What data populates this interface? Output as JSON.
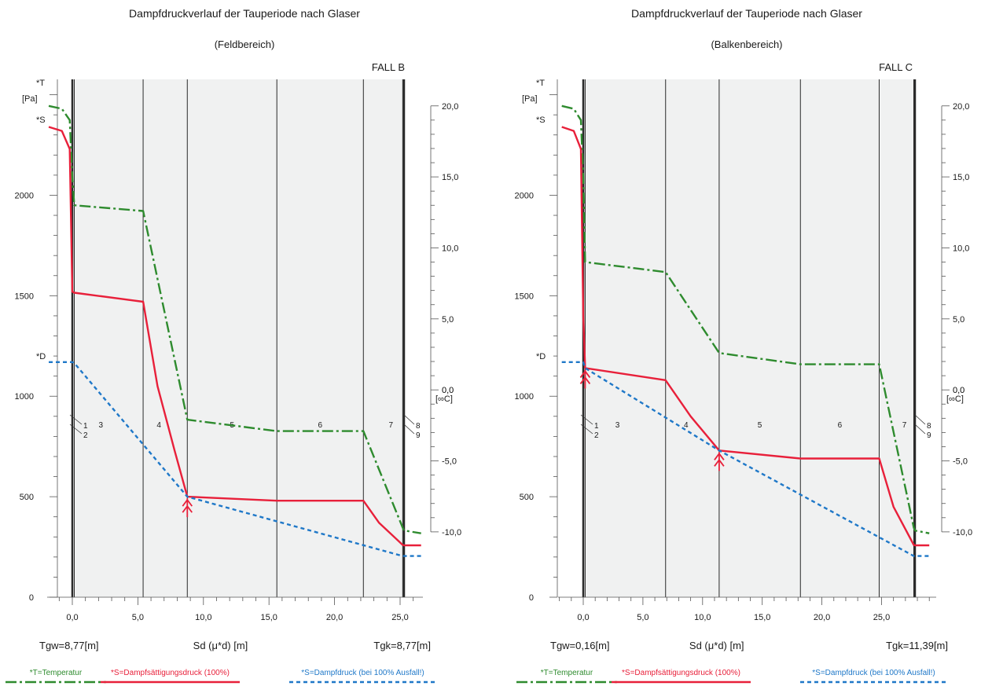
{
  "colors": {
    "temperature": "#2e8b2e",
    "saturation": "#e8203a",
    "vapor": "#1f78c8",
    "layer_fill": "#f0f1f1",
    "wall_line": "#2a2a2a"
  },
  "chart_data": [
    {
      "type": "line",
      "title": "Dampfdruckverlauf der Tauperiode nach Glaser",
      "subtitle": "(Feldbereich)",
      "case_label": "FALL B",
      "xlabel": "Sd (μ*d) [m]",
      "left_unit": "[Pa]",
      "right_unit": "[∞C]",
      "xlim": [
        -2.0,
        26.8
      ],
      "ylim": [
        0,
        2600
      ],
      "y2lim": [
        -14.6,
        22.2
      ],
      "x_ticks": [
        "0,0",
        "5,0",
        "10,0",
        "15,0",
        "20,0",
        "25,0"
      ],
      "x_tick_values": [
        0,
        5,
        10,
        15,
        20,
        25
      ],
      "y_ticks": [
        "0",
        "500",
        "1000",
        "1500",
        "2000"
      ],
      "y_tick_values": [
        0,
        500,
        1000,
        1500,
        2000
      ],
      "y2_ticks": [
        "20,0",
        "15,0",
        "10,0",
        "5,0",
        "0,0",
        "-5,0",
        "-10,0"
      ],
      "y2_tick_values": [
        20,
        15,
        10,
        5,
        0,
        -5,
        -10
      ],
      "tgw_label": "Tgw=8,77[m]",
      "tgk_label": "Tgk=8,77[m]",
      "layer_boundaries": [
        0.0,
        0.15,
        5.4,
        8.77,
        15.6,
        22.2,
        25.2,
        25.3
      ],
      "layer_labels": [
        "1",
        "2",
        "3",
        "4",
        "5",
        "6",
        "7",
        "8",
        "9"
      ],
      "condensation_x": [
        8.77
      ],
      "curve_markers": [
        "*T",
        "*S",
        "*D"
      ],
      "series": [
        {
          "name": "*T=Temperatur",
          "axis": "right",
          "x": [
            -1.8,
            -0.8,
            -0.2,
            0.0,
            0.15,
            5.4,
            8.77,
            15.6,
            22.2,
            25.2,
            25.3,
            26.6
          ],
          "y": [
            20.0,
            19.8,
            19.0,
            15.0,
            13.0,
            12.6,
            -2.1,
            -2.9,
            -2.9,
            -9.7,
            -9.9,
            -10.1
          ]
        },
        {
          "name": "*S=Dampfsättigungsdruck (100%)",
          "axis": "left",
          "x": [
            -1.8,
            -0.8,
            -0.2,
            0.0,
            0.15,
            5.4,
            6.5,
            7.8,
            8.77,
            15.6,
            22.2,
            23.4,
            25.2,
            25.3,
            26.6
          ],
          "y": [
            2340,
            2320,
            2230,
            1520,
            1515,
            1470,
            1050,
            730,
            500,
            480,
            480,
            370,
            260,
            258,
            258
          ]
        },
        {
          "name": "*S=Dampfdruck (bei 100% Ausfall!)",
          "axis": "left",
          "x": [
            -1.8,
            0.0,
            0.15,
            8.77,
            25.2,
            25.3,
            26.6
          ],
          "y": [
            1170,
            1170,
            1165,
            500,
            205,
            205,
            205
          ]
        }
      ]
    },
    {
      "type": "line",
      "title": "Dampfdruckverlauf der Tauperiode nach Glaser",
      "subtitle": "(Balkenbereich)",
      "case_label": "FALL C",
      "xlabel": "Sd (μ*d) [m]",
      "left_unit": "[Pa]",
      "right_unit": "[∞C]",
      "xlim": [
        -2.0,
        29.2
      ],
      "ylim": [
        0,
        2600
      ],
      "y2lim": [
        -14.6,
        22.2
      ],
      "x_ticks": [
        "0,0",
        "5,0",
        "10,0",
        "15,0",
        "20,0",
        "25,0"
      ],
      "x_tick_values": [
        0,
        5,
        10,
        15,
        20,
        25
      ],
      "y_ticks": [
        "0",
        "500",
        "1000",
        "1500",
        "2000"
      ],
      "y_tick_values": [
        0,
        500,
        1000,
        1500,
        2000
      ],
      "y2_ticks": [
        "20,0",
        "15,0",
        "10,0",
        "5,0",
        "0,0",
        "-5,0",
        "-10,0"
      ],
      "y2_tick_values": [
        20,
        15,
        10,
        5,
        0,
        -5,
        -10
      ],
      "tgw_label": "Tgw=0,16[m]",
      "tgk_label": "Tgk=11,39[m]",
      "layer_boundaries": [
        0.0,
        0.16,
        6.9,
        11.39,
        18.2,
        24.8,
        27.7,
        27.8
      ],
      "layer_labels": [
        "1",
        "2",
        "3",
        "4",
        "5",
        "6",
        "7",
        "8",
        "9"
      ],
      "condensation_x": [
        0.16,
        11.39
      ],
      "curve_markers": [
        "*T",
        "*S",
        "*D"
      ],
      "series": [
        {
          "name": "*T=Temperatur",
          "axis": "right",
          "x": [
            -1.8,
            -0.8,
            -0.2,
            0.0,
            0.16,
            6.9,
            11.39,
            18.2,
            24.8,
            27.7,
            27.8,
            29.0
          ],
          "y": [
            20.0,
            19.8,
            19.0,
            15.0,
            9.0,
            8.3,
            2.6,
            1.8,
            1.8,
            -9.7,
            -9.9,
            -10.1
          ]
        },
        {
          "name": "*S=Dampfsättigungsdruck (100%)",
          "axis": "left",
          "x": [
            -1.8,
            -0.8,
            -0.2,
            0.0,
            0.16,
            6.9,
            9.0,
            11.39,
            18.2,
            24.8,
            26.0,
            27.7,
            27.8,
            29.0
          ],
          "y": [
            2340,
            2320,
            2230,
            1400,
            1140,
            1080,
            900,
            730,
            690,
            690,
            450,
            260,
            258,
            258
          ]
        },
        {
          "name": "*S=Dampfdruck (bei 100% Ausfall!)",
          "axis": "left",
          "x": [
            -1.8,
            0.0,
            0.16,
            11.39,
            27.7,
            27.8,
            29.0
          ],
          "y": [
            1170,
            1170,
            1140,
            730,
            205,
            205,
            205
          ]
        }
      ]
    }
  ]
}
